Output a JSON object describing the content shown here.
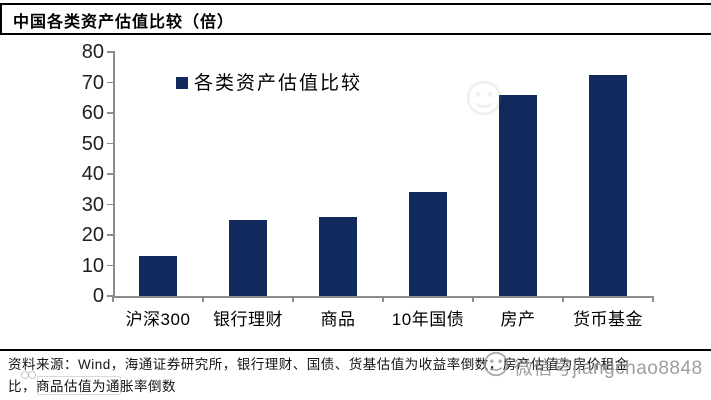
{
  "title": "中国各类资产估值比较（倍）",
  "legend": {
    "label": "各类资产估值比较"
  },
  "chart_data": {
    "type": "bar",
    "title": "中国各类资产估值比较（倍）",
    "categories": [
      "沪深300",
      "银行理财",
      "商品",
      "10年国债",
      "房产",
      "货币基金"
    ],
    "values": [
      13,
      25,
      26,
      34,
      66,
      72.5
    ],
    "series_name": "各类资产估值比较",
    "xlabel": "",
    "ylabel": "",
    "ylim": [
      0,
      80
    ],
    "yticks": [
      0,
      10,
      20,
      30,
      40,
      50,
      60,
      70,
      80
    ],
    "grid": false,
    "legend_position": "top-left-inside",
    "bar_color": "#12295d"
  },
  "footnote": {
    "line1": "资料来源：Wind，海通证券研究所，银行理财、国债、货基估值为收益率倒数，房产估值为房价租金",
    "line2": "比，商品估值为通胀率倒数"
  },
  "watermark": {
    "text": "微信号jiangchao8848",
    "icon": "smiley-face-icon",
    "color": "#999999"
  },
  "colors": {
    "bar": "#12295d",
    "axis": "#8c8c8c",
    "text": "#000000",
    "background": "#ffffff"
  }
}
